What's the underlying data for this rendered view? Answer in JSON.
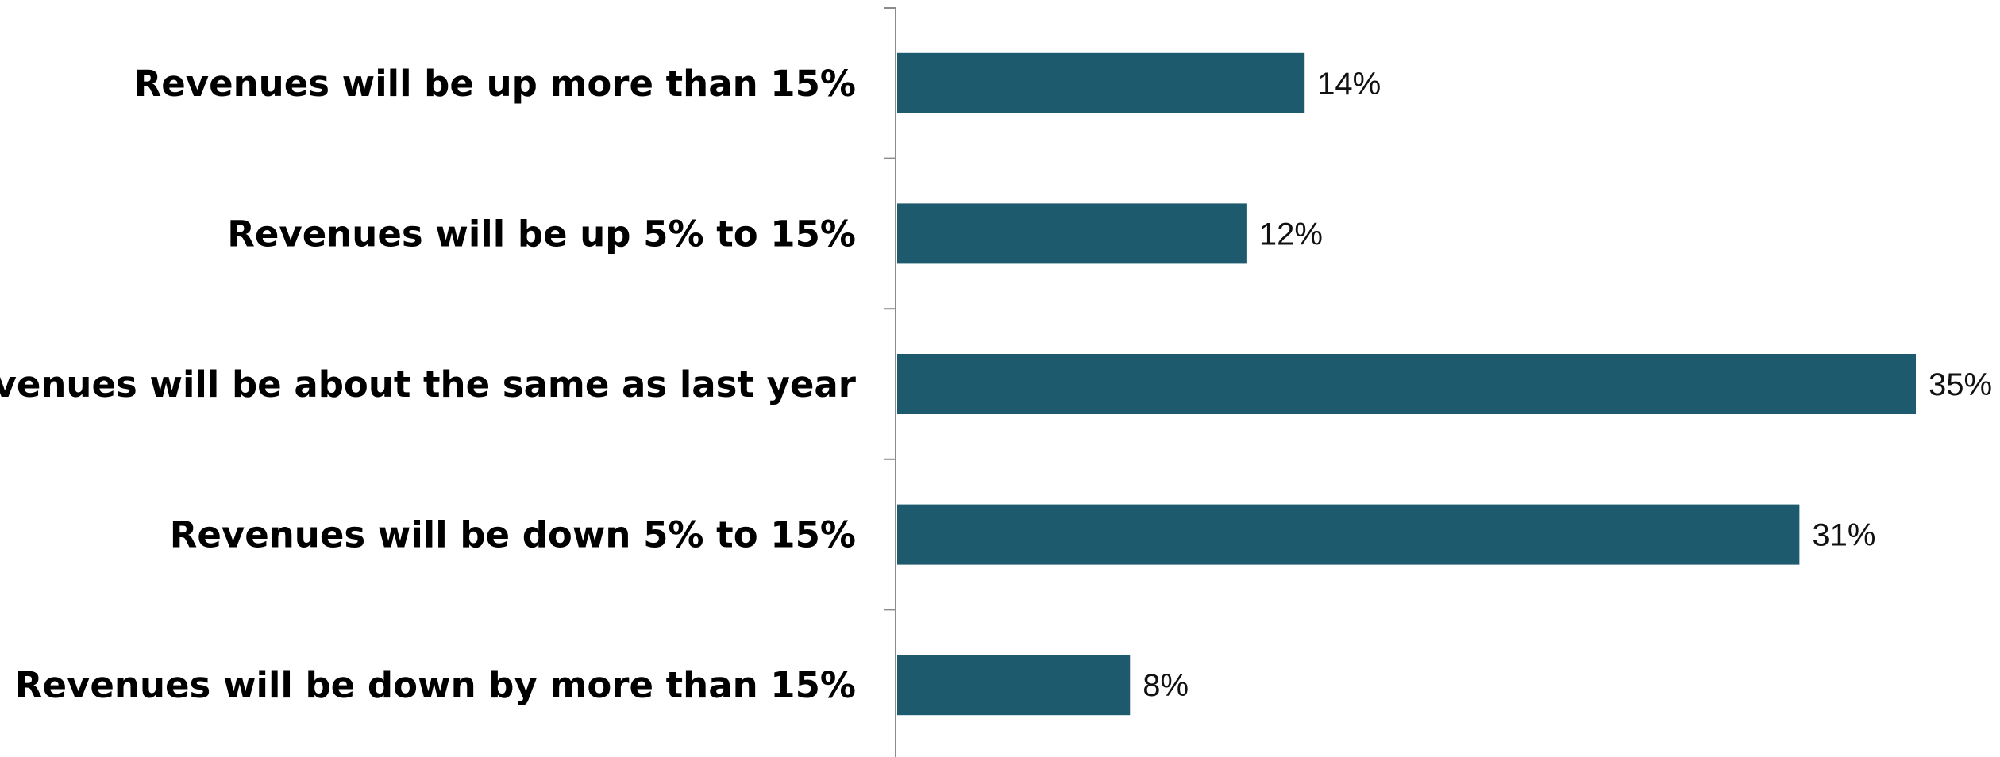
{
  "chart_data": {
    "type": "bar",
    "orientation": "horizontal",
    "categories": [
      "Revenues will be up more than 15%",
      "Revenues will be up 5% to 15%",
      "Revenues will be about the same as last year",
      "Revenues will be down 5% to 15%",
      "Revenues will be down by more than 15%"
    ],
    "values": [
      14,
      12,
      35,
      31,
      8
    ],
    "value_labels": [
      "14%",
      "12%",
      "35%",
      "31%",
      "8%"
    ],
    "xlim": [
      0,
      35
    ],
    "grid": false,
    "legend": "none",
    "bar_color": "#1d5a6d"
  }
}
